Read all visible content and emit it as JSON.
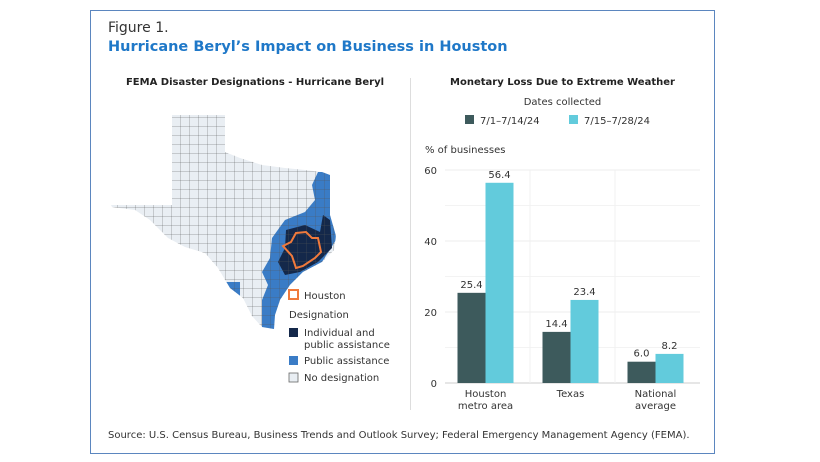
{
  "figure": {
    "label": "Figure 1.",
    "title": "Hurricane Beryl’s Impact on Business in Houston",
    "source": "Source: U.S. Census Bureau, Business Trends and Outlook Survey; Federal Emergency Management Agency (FEMA)."
  },
  "map": {
    "title": "FEMA Disaster Designations - Hurricane Beryl",
    "legend": {
      "houston": "Houston",
      "heading": "Designation",
      "items": [
        {
          "label_line1": "Individual and",
          "label_line2": "public assistance",
          "color": "#14284a"
        },
        {
          "label_line1": "Public assistance",
          "label_line2": "",
          "color": "#3a7cc6"
        },
        {
          "label_line1": "No designation",
          "label_line2": "",
          "color": "#e9eef3"
        }
      ],
      "houston_color": "#f07a3c"
    }
  },
  "chart_data": {
    "type": "bar",
    "title": "Monetary Loss Due to Extreme Weather",
    "legend_title": "Dates collected",
    "legend_placement": "top",
    "ylabel": "% of businesses",
    "ylim": [
      0,
      60
    ],
    "yticks": [
      "0",
      "20",
      "40",
      "60"
    ],
    "grid": true,
    "categories": [
      [
        "Houston",
        "metro area"
      ],
      [
        "Texas"
      ],
      [
        "National",
        "average"
      ]
    ],
    "series": [
      {
        "name": "7/1–7/14/24",
        "color": "#3d5a5c",
        "values": [
          25.4,
          14.4,
          6.0
        ],
        "labels": [
          "25.4",
          "14.4",
          "6.0"
        ]
      },
      {
        "name": "7/15–7/28/24",
        "color": "#62cbdc",
        "values": [
          56.4,
          23.4,
          8.2
        ],
        "labels": [
          "56.4",
          "23.4",
          "8.2"
        ]
      }
    ]
  }
}
